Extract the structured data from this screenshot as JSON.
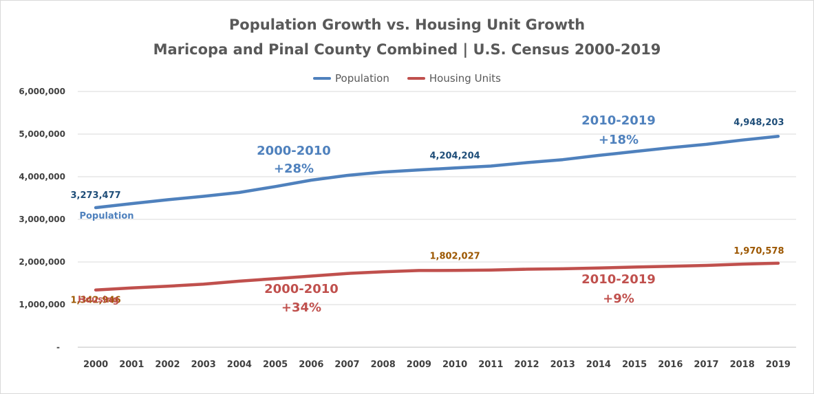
{
  "chart_data": {
    "type": "line",
    "title": "Population Growth vs. Housing Unit Growth",
    "subtitle": "Maricopa and Pinal County Combined | U.S. Census 2000-2019",
    "x": [
      "2000",
      "2001",
      "2002",
      "2003",
      "2004",
      "2005",
      "2006",
      "2007",
      "2008",
      "2009",
      "2010",
      "2011",
      "2012",
      "2013",
      "2014",
      "2015",
      "2016",
      "2017",
      "2018",
      "2019"
    ],
    "ylim": [
      0,
      6000000
    ],
    "yticks": [
      "-",
      "1,000,000",
      "2,000,000",
      "3,000,000",
      "4,000,000",
      "5,000,000",
      "6,000,000"
    ],
    "grid": true,
    "legend_position": "top",
    "series": [
      {
        "name": "Population",
        "color": "#4f81bd",
        "values": [
          3273477,
          3370000,
          3460000,
          3540000,
          3630000,
          3770000,
          3920000,
          4030000,
          4110000,
          4160000,
          4204204,
          4250000,
          4330000,
          4400000,
          4500000,
          4590000,
          4680000,
          4760000,
          4860000,
          4948203
        ]
      },
      {
        "name": "Housing Units",
        "color": "#c0504d",
        "values": [
          1342946,
          1390000,
          1430000,
          1480000,
          1550000,
          1610000,
          1670000,
          1730000,
          1770000,
          1800000,
          1802027,
          1810000,
          1830000,
          1840000,
          1860000,
          1880000,
          1900000,
          1920000,
          1950000,
          1970578
        ]
      }
    ],
    "data_labels": [
      {
        "series": 0,
        "index": 0,
        "text": "3,273,477"
      },
      {
        "series": 0,
        "index": 10,
        "text": "4,204,204"
      },
      {
        "series": 0,
        "index": 19,
        "text": "4,948,203"
      },
      {
        "series": 1,
        "index": 0,
        "text": "1,342,946"
      },
      {
        "series": 1,
        "index": 10,
        "text": "1,802,027"
      },
      {
        "series": 1,
        "index": 19,
        "text": "1,970,578"
      }
    ],
    "annotations": [
      {
        "series": 0,
        "text": "Population"
      },
      {
        "series": 1,
        "text": "Housing"
      },
      {
        "series": 0,
        "line1": "2000-2010",
        "line2": "+28%"
      },
      {
        "series": 0,
        "line1": "2010-2019",
        "line2": "+18%"
      },
      {
        "series": 1,
        "line1": "2000-2010",
        "line2": "+34%"
      },
      {
        "series": 1,
        "line1": "2010-2019",
        "line2": "+9%"
      }
    ],
    "label_colors": {
      "population": "#1f4e79",
      "housing": "#9c5700"
    }
  }
}
